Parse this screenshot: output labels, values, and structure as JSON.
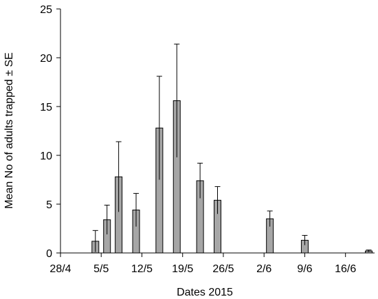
{
  "chart_data": {
    "type": "bar",
    "title": "",
    "xlabel": "Dates 2015",
    "ylabel": "Mean No of adults trapped ± SE",
    "ylim": [
      0,
      25
    ],
    "yticks": [
      0,
      5,
      10,
      15,
      20,
      25
    ],
    "x_ticks": [
      {
        "label": "28/4",
        "date": "2015-04-28"
      },
      {
        "label": "5/5",
        "date": "2015-05-05"
      },
      {
        "label": "12/5",
        "date": "2015-05-12"
      },
      {
        "label": "19/5",
        "date": "2015-05-19"
      },
      {
        "label": "26/5",
        "date": "2015-05-26"
      },
      {
        "label": "2/6",
        "date": "2015-06-02"
      },
      {
        "label": "9/6",
        "date": "2015-06-09"
      },
      {
        "label": "16/6",
        "date": "2015-06-16"
      }
    ],
    "xlim": [
      "2015-04-28",
      "2015-06-21"
    ],
    "bar_color": "#a6a6a6",
    "series": [
      {
        "values": [
          {
            "date": "2015-05-04",
            "mean": 1.2,
            "se": 1.1
          },
          {
            "date": "2015-05-06",
            "mean": 3.4,
            "se": 1.5
          },
          {
            "date": "2015-05-08",
            "mean": 7.8,
            "se": 3.6
          },
          {
            "date": "2015-05-11",
            "mean": 4.4,
            "se": 1.7
          },
          {
            "date": "2015-05-15",
            "mean": 12.8,
            "se": 5.3
          },
          {
            "date": "2015-05-18",
            "mean": 15.6,
            "se": 5.8
          },
          {
            "date": "2015-05-22",
            "mean": 7.4,
            "se": 1.8
          },
          {
            "date": "2015-05-25",
            "mean": 5.4,
            "se": 1.4
          },
          {
            "date": "2015-06-03",
            "mean": 3.5,
            "se": 0.8
          },
          {
            "date": "2015-06-09",
            "mean": 1.3,
            "se": 0.5
          },
          {
            "date": "2015-06-20",
            "mean": 0.2,
            "se": 0.1
          }
        ]
      }
    ]
  }
}
